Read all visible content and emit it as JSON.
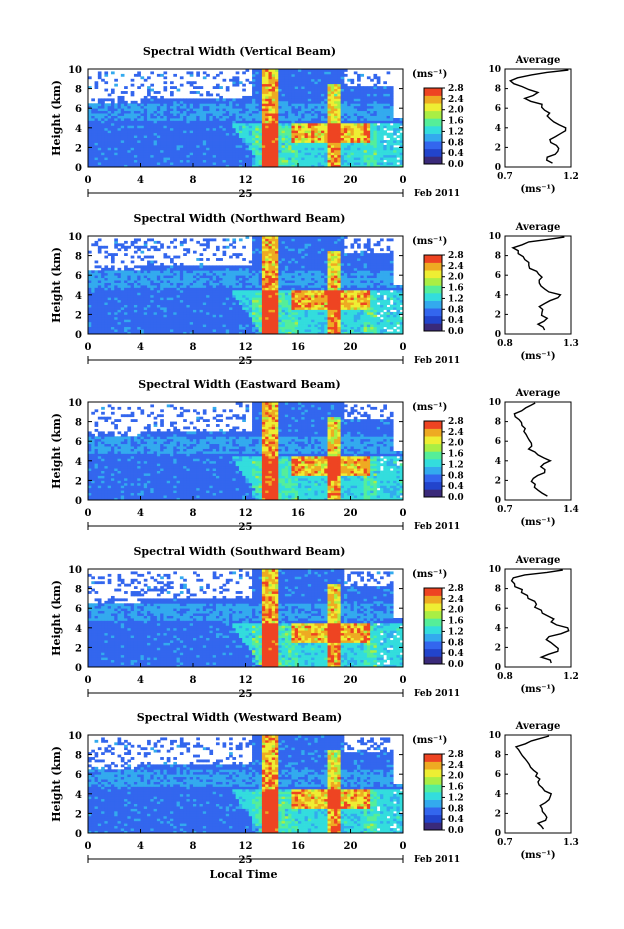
{
  "figure": {
    "xlabel": "Local Time",
    "date_label": "Feb 2011",
    "day_label": "25",
    "unit_label": "(ms⁻¹)",
    "avg_title": "Average",
    "colors": {
      "scale": [
        "#3a2a7a",
        "#2244cc",
        "#3366ee",
        "#33aaee",
        "#33dddd",
        "#55ee99",
        "#aaee44",
        "#eeee33",
        "#eeaa22",
        "#ee4422"
      ],
      "background": "#ffffff"
    }
  },
  "chart_data": [
    {
      "type": "heatmap",
      "title": "Spectral Width (Vertical Beam)",
      "ylabel": "Height (km)",
      "xlim": [
        0,
        24
      ],
      "ylim": [
        0,
        10
      ],
      "x_ticks": [
        "0",
        "4",
        "8",
        "12",
        "16",
        "20",
        "0"
      ],
      "y_ticks": [
        "0",
        "2",
        "4",
        "6",
        "8",
        "10"
      ],
      "colorbar": {
        "range": [
          0,
          2.8
        ],
        "tick_labels": [
          "2.8",
          "2.4",
          "2.0",
          "1.6",
          "1.2",
          "0.8",
          "0.4",
          "0.0"
        ]
      },
      "profile": {
        "title": "Average",
        "xlabel": "(ms⁻¹)",
        "xlim": [
          0.7,
          1.2
        ],
        "x_tick_labels": [
          "0.7",
          "1.2"
        ],
        "ylim": [
          0,
          10
        ],
        "heights": [
          0.4,
          1,
          1.6,
          2.2,
          2.8,
          3.4,
          4,
          4.6,
          5.2,
          5.8,
          6.4,
          7,
          7.6,
          8.2,
          8.8,
          9.4,
          9.9
        ],
        "values": [
          1.06,
          1.02,
          1.1,
          1.09,
          1.04,
          1.12,
          1.16,
          1.07,
          1.02,
          1.0,
          0.98,
          0.85,
          0.95,
          0.83,
          0.74,
          0.9,
          1.18
        ]
      }
    },
    {
      "type": "heatmap",
      "title": "Spectral Width (Northward Beam)",
      "ylabel": "Height (km)",
      "xlim": [
        0,
        24
      ],
      "ylim": [
        0,
        10
      ],
      "x_ticks": [
        "0",
        "4",
        "8",
        "12",
        "16",
        "20",
        "0"
      ],
      "y_ticks": [
        "0",
        "2",
        "4",
        "6",
        "8",
        "10"
      ],
      "colorbar": {
        "range": [
          0,
          2.8
        ],
        "tick_labels": [
          "2.8",
          "2.4",
          "2.0",
          "1.6",
          "1.2",
          "0.8",
          "0.4",
          "0.0"
        ]
      },
      "profile": {
        "title": "Average",
        "xlabel": "(ms⁻¹)",
        "xlim": [
          0.8,
          1.3
        ],
        "x_tick_labels": [
          "0.8",
          "1.3"
        ],
        "ylim": [
          0,
          10
        ],
        "heights": [
          0.4,
          1,
          1.6,
          2.2,
          2.8,
          3.4,
          4,
          4.6,
          5.2,
          5.8,
          6.4,
          7,
          7.6,
          8.2,
          8.8,
          9.4,
          9.9
        ],
        "values": [
          1.1,
          1.05,
          1.12,
          1.08,
          1.06,
          1.14,
          1.22,
          1.1,
          1.06,
          1.08,
          1.04,
          0.98,
          0.95,
          0.9,
          0.86,
          0.98,
          1.25
        ]
      }
    },
    {
      "type": "heatmap",
      "title": "Spectral Width (Eastward Beam)",
      "ylabel": "Height (km)",
      "xlim": [
        0,
        24
      ],
      "ylim": [
        0,
        10
      ],
      "x_ticks": [
        "0",
        "4",
        "8",
        "12",
        "16",
        "20",
        "0"
      ],
      "y_ticks": [
        "0",
        "2",
        "4",
        "6",
        "8",
        "10"
      ],
      "colorbar": {
        "range": [
          0,
          2.8
        ],
        "tick_labels": [
          "2.8",
          "2.4",
          "2.0",
          "1.6",
          "1.2",
          "0.8",
          "0.4",
          "0.0"
        ]
      },
      "profile": {
        "title": "Average",
        "xlabel": "(ms⁻¹)",
        "xlim": [
          0.7,
          1.4
        ],
        "x_tick_labels": [
          "0.7",
          "1.4"
        ],
        "ylim": [
          0,
          10
        ],
        "heights": [
          0.4,
          1,
          1.6,
          2.2,
          2.8,
          3.4,
          4,
          4.6,
          5.2,
          5.8,
          6.4,
          7,
          7.6,
          8.2,
          8.8,
          9.4,
          9.9
        ],
        "values": [
          1.15,
          1.05,
          1.02,
          1.0,
          1.12,
          1.08,
          1.18,
          1.05,
          0.95,
          0.98,
          0.94,
          0.9,
          0.88,
          0.85,
          0.8,
          0.92,
          1.02
        ]
      }
    },
    {
      "type": "heatmap",
      "title": "Spectral Width (Southward Beam)",
      "ylabel": "Height (km)",
      "xlim": [
        0,
        24
      ],
      "ylim": [
        0,
        10
      ],
      "x_ticks": [
        "0",
        "4",
        "8",
        "12",
        "16",
        "20",
        "0"
      ],
      "y_ticks": [
        "0",
        "2",
        "4",
        "6",
        "8",
        "10"
      ],
      "colorbar": {
        "range": [
          0,
          2.8
        ],
        "tick_labels": [
          "2.8",
          "2.4",
          "2.0",
          "1.6",
          "1.2",
          "0.8",
          "0.4",
          "0.0"
        ]
      },
      "profile": {
        "title": "Average",
        "xlabel": "(ms⁻¹)",
        "xlim": [
          0.8,
          1.2
        ],
        "x_tick_labels": [
          "0.8",
          "1.2"
        ],
        "ylim": [
          0,
          10
        ],
        "heights": [
          0.4,
          1,
          1.6,
          2.2,
          2.8,
          3.4,
          4,
          4.6,
          5.2,
          5.8,
          6.4,
          7,
          7.6,
          8.2,
          8.8,
          9.4,
          9.9
        ],
        "values": [
          1.08,
          1.02,
          1.12,
          1.1,
          1.05,
          1.14,
          1.18,
          1.08,
          1.06,
          1.02,
          0.99,
          0.94,
          0.9,
          0.86,
          0.84,
          0.92,
          1.15
        ]
      }
    },
    {
      "type": "heatmap",
      "title": "Spectral Width (Westward Beam)",
      "ylabel": "Height (km)",
      "xlim": [
        0,
        24
      ],
      "ylim": [
        0,
        10
      ],
      "x_ticks": [
        "0",
        "4",
        "8",
        "12",
        "16",
        "20",
        "0"
      ],
      "y_ticks": [
        "0",
        "2",
        "4",
        "6",
        "8",
        "10"
      ],
      "colorbar": {
        "range": [
          0,
          2.8
        ],
        "tick_labels": [
          "2.8",
          "2.4",
          "2.0",
          "1.6",
          "1.2",
          "0.8",
          "0.4",
          "0.0"
        ]
      },
      "profile": {
        "title": "Average",
        "xlabel": "(ms⁻¹)",
        "xlim": [
          0.7,
          1.3
        ],
        "x_tick_labels": [
          "0.7",
          "1.3"
        ],
        "ylim": [
          0,
          10
        ],
        "heights": [
          0.4,
          1,
          1.6,
          2.2,
          2.8,
          3.4,
          4,
          4.6,
          5.2,
          5.8,
          6.4,
          7,
          7.6,
          8.2,
          8.8,
          9.4,
          9.9
        ],
        "values": [
          1.05,
          1.0,
          1.08,
          1.04,
          1.02,
          1.1,
          1.12,
          1.04,
          1.0,
          0.98,
          0.96,
          0.92,
          0.88,
          0.84,
          0.8,
          0.94,
          1.1
        ]
      }
    }
  ]
}
